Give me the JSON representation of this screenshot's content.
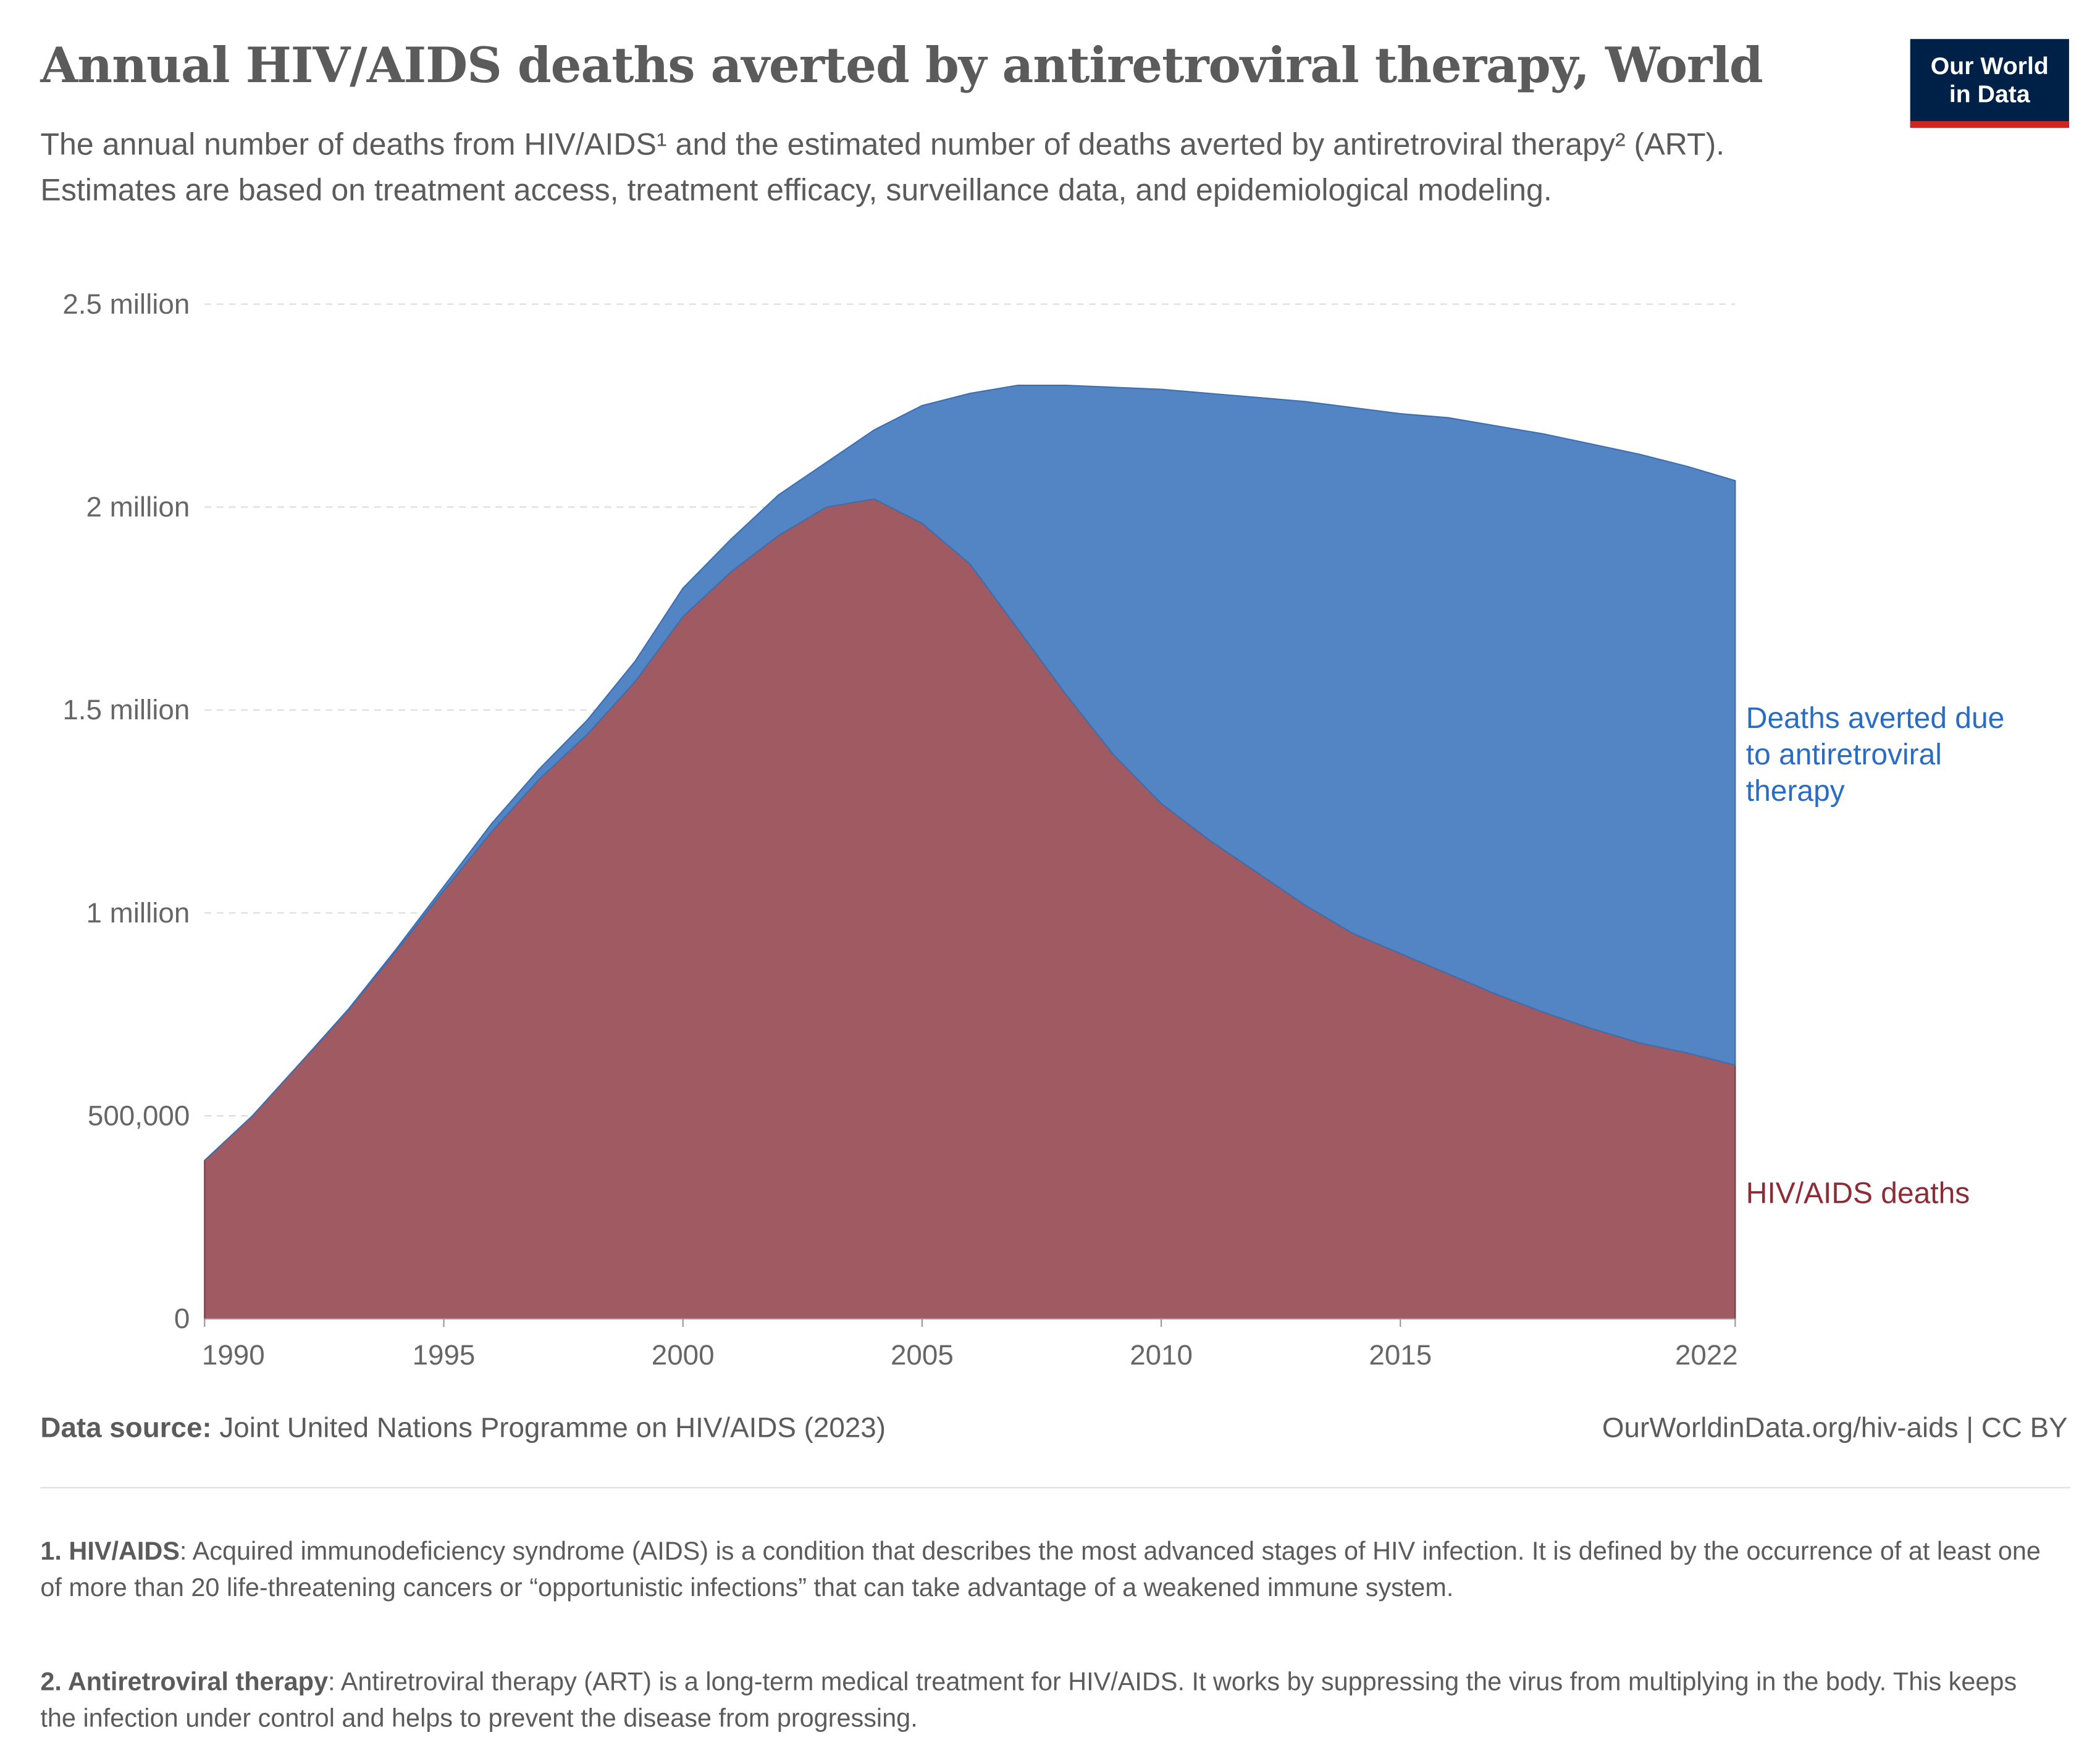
{
  "header": {
    "title": "Annual HIV/AIDS deaths averted by antiretroviral therapy, World",
    "subtitle": "The annual number of deaths from HIV/AIDS¹ and the estimated number of deaths averted by antiretroviral therapy² (ART). Estimates are based on treatment access, treatment efficacy, surveillance data, and epidemiological modeling.",
    "logo_line1": "Our World",
    "logo_line2": "in Data"
  },
  "chart_data": {
    "type": "area",
    "stacked": true,
    "title": "Annual HIV/AIDS deaths averted by antiretroviral therapy, World",
    "xlabel": "",
    "ylabel": "",
    "x": [
      1990,
      1991,
      1992,
      1993,
      1994,
      1995,
      1996,
      1997,
      1998,
      1999,
      2000,
      2001,
      2002,
      2003,
      2004,
      2005,
      2006,
      2007,
      2008,
      2009,
      2010,
      2011,
      2012,
      2013,
      2014,
      2015,
      2016,
      2017,
      2018,
      2019,
      2020,
      2021,
      2022
    ],
    "series": [
      {
        "name": "HIV/AIDS deaths",
        "color": "#a05a61",
        "values": [
          390000,
          500000,
          630000,
          760000,
          905000,
          1055000,
          1200000,
          1330000,
          1440000,
          1570000,
          1730000,
          1840000,
          1930000,
          2000000,
          2020000,
          1960000,
          1860000,
          1700000,
          1540000,
          1390000,
          1270000,
          1180000,
          1100000,
          1020000,
          950000,
          900000,
          850000,
          800000,
          755000,
          715000,
          680000,
          655000,
          625000
        ]
      },
      {
        "name": "Deaths averted due to antiretroviral therapy",
        "color": "#5385c4",
        "values": [
          0,
          0,
          0,
          2000,
          5000,
          10000,
          20000,
          25000,
          35000,
          50000,
          70000,
          80000,
          100000,
          110000,
          170000,
          290000,
          420000,
          600000,
          760000,
          905000,
          1020000,
          1100000,
          1170000,
          1240000,
          1295000,
          1330000,
          1370000,
          1400000,
          1425000,
          1440000,
          1450000,
          1445000,
          1440000
        ]
      }
    ],
    "ylim": [
      0,
      2500000
    ],
    "yticks": [
      0,
      500000,
      1000000,
      1500000,
      2000000,
      2500000
    ],
    "ytick_labels": [
      "0",
      "500,000",
      "1 million",
      "1.5 million",
      "2 million",
      "2.5 million"
    ],
    "xticks": [
      1990,
      1995,
      2000,
      2005,
      2010,
      2015,
      2022
    ],
    "xtick_labels": [
      "1990",
      "1995",
      "2000",
      "2005",
      "2010",
      "2015",
      "2022"
    ],
    "grid": true,
    "legend_placement": "right (inline labels)",
    "legend": {
      "averted": "Deaths averted due to antiretroviral therapy",
      "deaths": "HIV/AIDS deaths"
    },
    "legend_colors": {
      "averted": "#2a6bc4",
      "deaths": "#8b2c36"
    }
  },
  "footer": {
    "source_label": "Data source:",
    "source_text": " Joint United Nations Programme on HIV/AIDS (2023)",
    "url": "OurWorldinData.org/hiv-aids | CC BY"
  },
  "notes": [
    {
      "term": "1. HIV/AIDS",
      "text": ": Acquired immunodeficiency syndrome (AIDS) is a condition that describes the most advanced stages of HIV infection. It is defined by the occurrence of at least one of more than 20 life-threatening cancers or “opportunistic infections” that can take advantage of a weakened immune system."
    },
    {
      "term": "2. Antiretroviral therapy",
      "text": ": Antiretroviral therapy (ART) is a long-term medical treatment for HIV/AIDS. It works by suppressing the virus from multiplying in the body. This keeps the infection under control and helps to prevent the disease from progressing."
    }
  ]
}
